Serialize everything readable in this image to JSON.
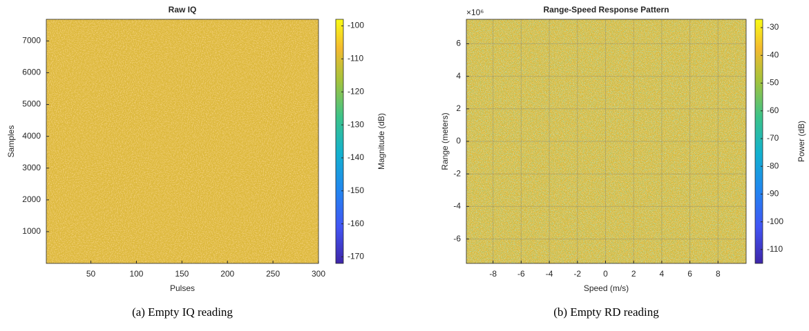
{
  "chart_data": [
    {
      "type": "heatmap",
      "title": "Raw IQ",
      "xlabel": "Pulses",
      "ylabel": "Samples",
      "xlim": [
        1,
        300
      ],
      "xticks": [
        50,
        100,
        150,
        200,
        250,
        300
      ],
      "ylim": [
        1,
        7680
      ],
      "yticks": [
        1000,
        2000,
        3000,
        4000,
        5000,
        6000,
        7000
      ],
      "colormap": "parula",
      "clim": [
        -172,
        -98
      ],
      "cticks": [
        -100,
        -110,
        -120,
        -130,
        -140,
        -150,
        -160,
        -170
      ],
      "colorbar_label": "Magnitude (dB)",
      "grid": false,
      "caption": "(a) Empty IQ reading"
    },
    {
      "type": "heatmap",
      "title": "Range-Speed Response Pattern",
      "xlabel": "Speed (m/s)",
      "ylabel": "Range (meters)",
      "y_exponent": "×10⁶",
      "xlim": [
        -9.9,
        10
      ],
      "xticks": [
        -8,
        -6,
        -4,
        -2,
        0,
        2,
        4,
        6,
        8
      ],
      "ylim": [
        -7.5,
        7.5
      ],
      "yticks": [
        -6,
        -4,
        -2,
        0,
        2,
        4,
        6
      ],
      "colormap": "parula",
      "clim": [
        -115,
        -27
      ],
      "cticks": [
        -30,
        -40,
        -50,
        -60,
        -70,
        -80,
        -90,
        -100,
        -110
      ],
      "colorbar_label": "Power (dB)",
      "grid": true,
      "caption": "(b) Empty RD reading"
    }
  ]
}
